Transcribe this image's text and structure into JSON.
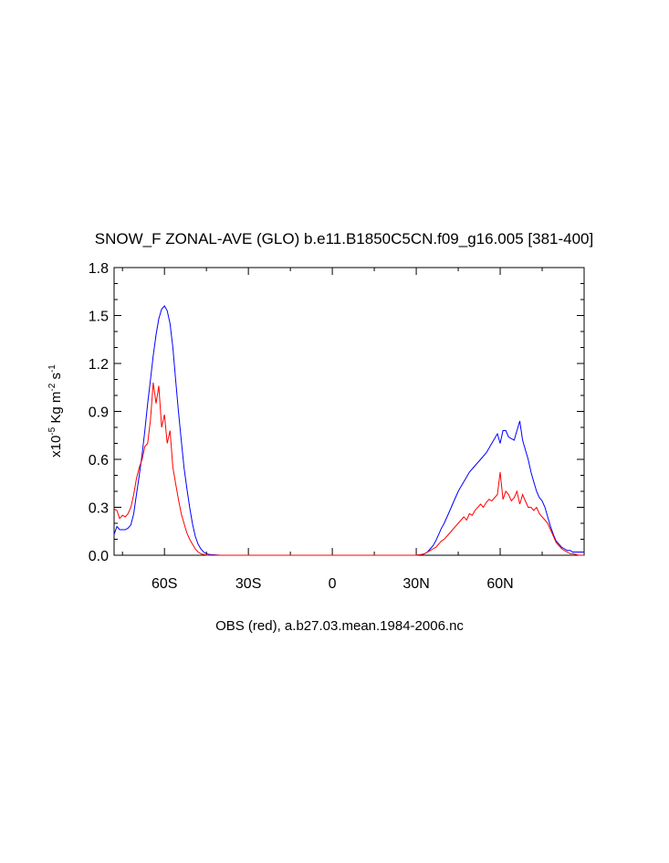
{
  "chart_data": {
    "type": "line",
    "title": "SNOW_F ZONAL-AVE (GLO) b.e11.B1850C5CN.f09_g16.005 [381-400]",
    "xlabel": "OBS (red), a.b27.03.mean.1984-2006.nc",
    "ylabel": {
      "prefix": "x10",
      "exponent": "-5",
      "unit": " Kg m",
      "unit_exponent": "-2",
      "unit2": " s",
      "unit2_exponent": "-1"
    },
    "xlim": [
      -78,
      90
    ],
    "ylim": [
      0,
      1.8
    ],
    "x_ticks": [
      {
        "value": -60,
        "label": "60S"
      },
      {
        "value": -30,
        "label": "30S"
      },
      {
        "value": 0,
        "label": "0"
      },
      {
        "value": 30,
        "label": "30N"
      },
      {
        "value": 60,
        "label": "60N"
      }
    ],
    "y_ticks": [
      {
        "value": 0.0,
        "label": "0.0"
      },
      {
        "value": 0.3,
        "label": "0.3"
      },
      {
        "value": 0.6,
        "label": "0.6"
      },
      {
        "value": 0.9,
        "label": "0.9"
      },
      {
        "value": 1.2,
        "label": "1.2"
      },
      {
        "value": 1.5,
        "label": "1.5"
      },
      {
        "value": 1.8,
        "label": "1.8"
      }
    ],
    "series": [
      {
        "color": "#0000ff",
        "x": [
          -78,
          -77,
          -76,
          -75,
          -74,
          -73,
          -72,
          -71,
          -70,
          -69,
          -68,
          -67,
          -66,
          -65,
          -64,
          -63,
          -62,
          -61,
          -60,
          -59,
          -58,
          -57,
          -56,
          -55,
          -54,
          -53,
          -52,
          -51,
          -50,
          -49,
          -48,
          -47,
          -46,
          -45,
          -44,
          -40,
          -30,
          0,
          30,
          32,
          33,
          34,
          35,
          36,
          37,
          38,
          39,
          40,
          41,
          42,
          43,
          44,
          45,
          46,
          47,
          48,
          49,
          50,
          51,
          52,
          53,
          54,
          55,
          56,
          57,
          58,
          59,
          60,
          61,
          62,
          63,
          64,
          65,
          66,
          67,
          68,
          69,
          70,
          71,
          72,
          73,
          74,
          75,
          76,
          77,
          78,
          79,
          80,
          81,
          82,
          83,
          84,
          85,
          86,
          87,
          88,
          89,
          90
        ],
        "y": [
          0.13,
          0.18,
          0.16,
          0.16,
          0.16,
          0.17,
          0.19,
          0.26,
          0.38,
          0.5,
          0.63,
          0.78,
          0.95,
          1.1,
          1.25,
          1.38,
          1.48,
          1.54,
          1.56,
          1.53,
          1.45,
          1.3,
          1.1,
          0.9,
          0.72,
          0.55,
          0.42,
          0.3,
          0.2,
          0.12,
          0.07,
          0.04,
          0.02,
          0.01,
          0.005,
          0,
          0,
          0,
          0,
          0.005,
          0.01,
          0.02,
          0.04,
          0.06,
          0.09,
          0.13,
          0.17,
          0.2,
          0.24,
          0.28,
          0.32,
          0.36,
          0.4,
          0.43,
          0.46,
          0.49,
          0.52,
          0.54,
          0.56,
          0.58,
          0.6,
          0.62,
          0.64,
          0.67,
          0.7,
          0.73,
          0.76,
          0.7,
          0.78,
          0.78,
          0.74,
          0.73,
          0.72,
          0.78,
          0.84,
          0.72,
          0.66,
          0.6,
          0.52,
          0.46,
          0.4,
          0.36,
          0.34,
          0.3,
          0.24,
          0.18,
          0.13,
          0.09,
          0.07,
          0.05,
          0.04,
          0.03,
          0.03,
          0.02,
          0.02,
          0.02,
          0.02,
          0.02
        ]
      },
      {
        "color": "#ff0000",
        "x": [
          -78,
          -77,
          -76,
          -75,
          -74,
          -73,
          -72,
          -71,
          -70,
          -69,
          -68,
          -67,
          -66,
          -65,
          -64,
          -63,
          -62,
          -61,
          -60,
          -59,
          -58,
          -57,
          -56,
          -55,
          -54,
          -53,
          -52,
          -51,
          -50,
          -49,
          -48,
          -47,
          -46,
          -45,
          -44,
          -40,
          -30,
          0,
          30,
          32,
          33,
          34,
          35,
          36,
          37,
          38,
          39,
          40,
          41,
          42,
          43,
          44,
          45,
          46,
          47,
          48,
          49,
          50,
          51,
          52,
          53,
          54,
          55,
          56,
          57,
          58,
          59,
          60,
          61,
          62,
          63,
          64,
          65,
          66,
          67,
          68,
          69,
          70,
          71,
          72,
          73,
          74,
          75,
          76,
          77,
          78,
          79,
          80,
          81,
          82,
          83,
          84,
          85,
          86,
          87,
          88,
          89,
          90
        ],
        "y": [
          0.29,
          0.28,
          0.23,
          0.25,
          0.24,
          0.26,
          0.3,
          0.38,
          0.48,
          0.55,
          0.6,
          0.68,
          0.7,
          0.85,
          1.08,
          0.95,
          1.06,
          0.8,
          0.88,
          0.7,
          0.78,
          0.55,
          0.45,
          0.35,
          0.26,
          0.2,
          0.14,
          0.1,
          0.07,
          0.04,
          0.02,
          0.01,
          0.005,
          0,
          0,
          0,
          0,
          0,
          0,
          0.005,
          0.01,
          0.02,
          0.03,
          0.04,
          0.05,
          0.07,
          0.09,
          0.1,
          0.12,
          0.14,
          0.16,
          0.18,
          0.2,
          0.22,
          0.24,
          0.22,
          0.26,
          0.25,
          0.28,
          0.3,
          0.32,
          0.3,
          0.33,
          0.35,
          0.34,
          0.36,
          0.38,
          0.52,
          0.35,
          0.4,
          0.38,
          0.34,
          0.36,
          0.4,
          0.32,
          0.38,
          0.34,
          0.3,
          0.3,
          0.28,
          0.3,
          0.26,
          0.24,
          0.22,
          0.2,
          0.16,
          0.12,
          0.08,
          0.06,
          0.04,
          0.03,
          0.02,
          0.01,
          0.01,
          0.005,
          0,
          0,
          0
        ]
      }
    ]
  }
}
